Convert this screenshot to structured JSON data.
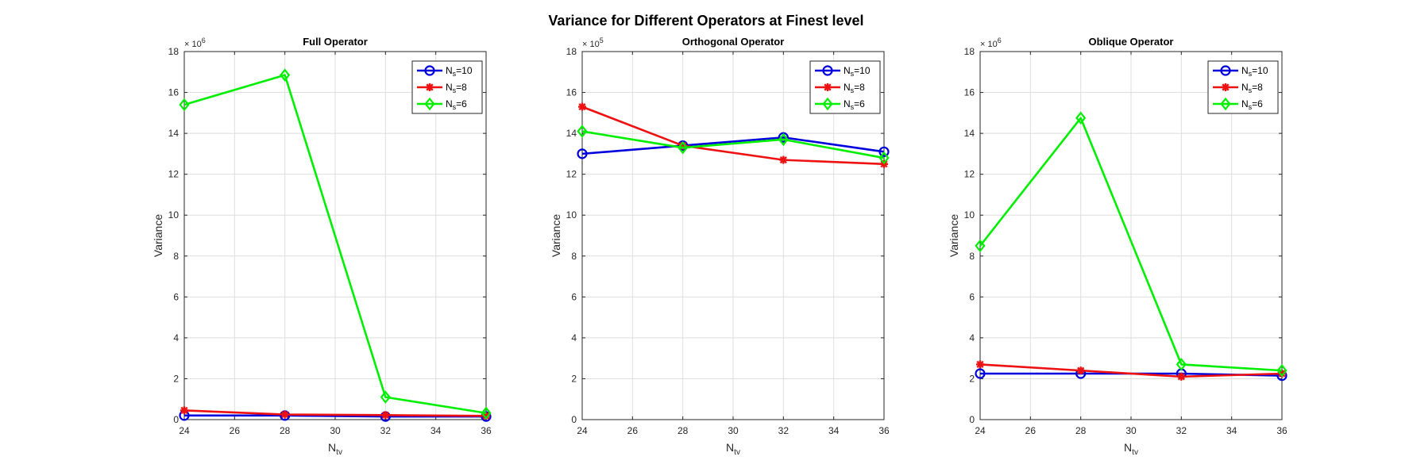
{
  "figure_title": "Variance for Different Operators at Finest level",
  "chart_data": [
    {
      "type": "line",
      "title": "Full Operator",
      "xlabel": {
        "base": "N",
        "sub": "tv"
      },
      "ylabel": "Variance",
      "multiplier": {
        "base": "× 10",
        "exp": "6"
      },
      "x": [
        24,
        28,
        32,
        36
      ],
      "xlim": [
        24,
        36
      ],
      "xticks": [
        "24",
        "26",
        "28",
        "30",
        "32",
        "34",
        "36"
      ],
      "ylim": [
        0,
        18
      ],
      "yticks": [
        "0",
        "2",
        "4",
        "6",
        "8",
        "10",
        "12",
        "14",
        "16",
        "18"
      ],
      "grid": true,
      "legend_position": "top-right",
      "series": [
        {
          "name_base": "N",
          "name_sub": "s",
          "name_rest": "=10",
          "color": "#0000dd",
          "marker": "circle",
          "values": [
            0.2,
            0.2,
            0.15,
            0.15
          ]
        },
        {
          "name_base": "N",
          "name_sub": "s",
          "name_rest": "=8",
          "color": "#ee1111",
          "marker": "asterisk",
          "values": [
            0.45,
            0.25,
            0.22,
            0.18
          ]
        },
        {
          "name_base": "N",
          "name_sub": "s",
          "name_rest": "=6",
          "color": "#00ee00",
          "marker": "diamond",
          "values": [
            15.4,
            16.85,
            1.1,
            0.32
          ]
        }
      ]
    },
    {
      "type": "line",
      "title": "Orthogonal Operator",
      "xlabel": {
        "base": "N",
        "sub": "tv"
      },
      "ylabel": "Variance",
      "multiplier": {
        "base": "× 10",
        "exp": "5"
      },
      "x": [
        24,
        28,
        32,
        36
      ],
      "xlim": [
        24,
        36
      ],
      "xticks": [
        "24",
        "26",
        "28",
        "30",
        "32",
        "34",
        "36"
      ],
      "ylim": [
        0,
        18
      ],
      "yticks": [
        "0",
        "2",
        "4",
        "6",
        "8",
        "10",
        "12",
        "14",
        "16",
        "18"
      ],
      "grid": true,
      "legend_position": "top-right",
      "series": [
        {
          "name_base": "N",
          "name_sub": "s",
          "name_rest": "=10",
          "color": "#0000dd",
          "marker": "circle",
          "values": [
            13.0,
            13.4,
            13.8,
            13.1
          ]
        },
        {
          "name_base": "N",
          "name_sub": "s",
          "name_rest": "=8",
          "color": "#ee1111",
          "marker": "asterisk",
          "values": [
            15.3,
            13.4,
            12.7,
            12.5
          ]
        },
        {
          "name_base": "N",
          "name_sub": "s",
          "name_rest": "=6",
          "color": "#00ee00",
          "marker": "diamond",
          "values": [
            14.1,
            13.3,
            13.7,
            12.8
          ]
        }
      ]
    },
    {
      "type": "line",
      "title": "Oblique Operator",
      "xlabel": {
        "base": "N",
        "sub": "tv"
      },
      "ylabel": "Variance",
      "multiplier": {
        "base": "× 10",
        "exp": "6"
      },
      "x": [
        24,
        28,
        32,
        36
      ],
      "xlim": [
        24,
        36
      ],
      "xticks": [
        "24",
        "26",
        "28",
        "30",
        "32",
        "34",
        "36"
      ],
      "ylim": [
        0,
        18
      ],
      "yticks": [
        "0",
        "2",
        "4",
        "6",
        "8",
        "10",
        "12",
        "14",
        "16",
        "18"
      ],
      "grid": true,
      "legend_position": "top-right",
      "series": [
        {
          "name_base": "N",
          "name_sub": "s",
          "name_rest": "=10",
          "color": "#0000dd",
          "marker": "circle",
          "values": [
            2.25,
            2.25,
            2.25,
            2.15
          ]
        },
        {
          "name_base": "N",
          "name_sub": "s",
          "name_rest": "=8",
          "color": "#ee1111",
          "marker": "asterisk",
          "values": [
            2.7,
            2.4,
            2.1,
            2.25
          ]
        },
        {
          "name_base": "N",
          "name_sub": "s",
          "name_rest": "=6",
          "color": "#00ee00",
          "marker": "diamond",
          "values": [
            8.5,
            14.75,
            2.7,
            2.4
          ]
        }
      ]
    }
  ]
}
